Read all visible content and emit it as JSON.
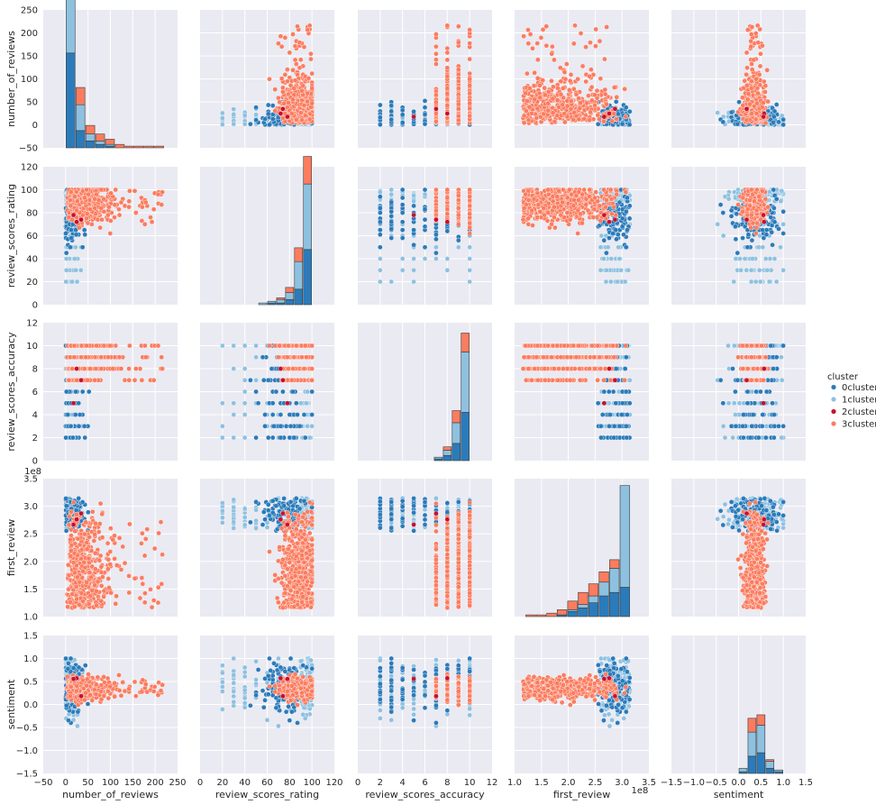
{
  "chart_data": {
    "type": "pairplot",
    "variables": [
      "number_of_reviews",
      "review_scores_rating",
      "review_scores_accuracy",
      "first_review",
      "sentiment"
    ],
    "axes": {
      "number_of_reviews": {
        "range": [
          -50,
          250
        ],
        "ticks": [
          -50,
          0,
          50,
          100,
          150,
          200,
          250
        ],
        "tick_labels": [
          "−50",
          "0",
          "50",
          "100",
          "150",
          "200",
          "250"
        ]
      },
      "review_scores_rating": {
        "range": [
          0,
          120
        ],
        "ticks": [
          0,
          20,
          40,
          60,
          80,
          100,
          120
        ],
        "tick_labels": [
          "0",
          "20",
          "40",
          "60",
          "80",
          "100",
          "120"
        ]
      },
      "review_scores_accuracy": {
        "range": [
          0,
          12
        ],
        "ticks": [
          0,
          2,
          4,
          6,
          8,
          10,
          12
        ],
        "tick_labels": [
          "0",
          "2",
          "4",
          "6",
          "8",
          "10",
          "12"
        ]
      },
      "first_review": {
        "range": [
          100000000,
          350000000
        ],
        "ticks": [
          100000000,
          150000000,
          200000000,
          250000000,
          300000000,
          350000000
        ],
        "tick_labels": [
          "1.0",
          "1.5",
          "2.0",
          "2.5",
          "3.0",
          "3.5"
        ],
        "offset_text": "1e8"
      },
      "sentiment": {
        "range": [
          -1.5,
          1.5
        ],
        "ticks": [
          -1.5,
          -1.0,
          -0.5,
          0.0,
          0.5,
          1.0,
          1.5
        ],
        "tick_labels": [
          "−1.5",
          "−1.0",
          "−0.5",
          "0.0",
          "0.5",
          "1.0",
          "1.5"
        ]
      }
    },
    "hue": "cluster",
    "legend": {
      "title": "cluster",
      "placement": "right",
      "entries": [
        {
          "label": "0cluster",
          "color": "#2b7bba"
        },
        {
          "label": "1cluster",
          "color": "#8ec1e0"
        },
        {
          "label": "2cluster",
          "color": "#c8102e"
        },
        {
          "label": "3cluster",
          "color": "#fb7c5f"
        }
      ]
    },
    "histograms": {
      "number_of_reviews": {
        "bin_edges": [
          0,
          22,
          44,
          66,
          88,
          110,
          132,
          154,
          176,
          198,
          220
        ],
        "series": [
          {
            "name": "0cluster",
            "values": [
              55,
              10,
              4,
              2,
              1,
              0,
              0,
              0,
              0,
              0
            ]
          },
          {
            "name": "1cluster",
            "values": [
              140,
              15,
              4,
              2,
              1,
              0,
              0,
              0,
              0,
              0
            ]
          },
          {
            "name": "3cluster",
            "values": [
              25,
              10,
              5,
              4,
              3,
              2,
              1,
              1,
              1,
              1
            ]
          }
        ]
      },
      "review_scores_rating": {
        "bin_edges": [
          20,
          28,
          36,
          44,
          52,
          60,
          68,
          76,
          84,
          92,
          100
        ],
        "series": [
          {
            "name": "0cluster",
            "values": [
              0,
              0,
              0,
              0,
              0,
              1,
              1,
              3,
              9,
              32
            ]
          },
          {
            "name": "1cluster",
            "values": [
              0,
              0,
              0,
              0,
              1,
              1,
              2,
              4,
              16,
              38
            ]
          },
          {
            "name": "3cluster",
            "values": [
              0,
              0,
              0,
              0,
              0,
              0,
              1,
              3,
              8,
              16
            ]
          }
        ]
      },
      "review_scores_accuracy": {
        "bin_edges": [
          2,
          2.8,
          3.6,
          4.4,
          5.2,
          6,
          6.8,
          7.6,
          8.4,
          9.2,
          10
        ],
        "series": [
          {
            "name": "0cluster",
            "values": [
              0,
              0,
              0,
              0,
              0,
              0,
              1,
              3,
              10,
              28
            ]
          },
          {
            "name": "1cluster",
            "values": [
              0,
              0,
              0,
              0,
              0,
              0,
              1,
              3,
              12,
              35
            ]
          },
          {
            "name": "3cluster",
            "values": [
              0,
              0,
              0,
              0,
              0,
              0,
              0,
              2,
              7,
              11
            ]
          }
        ]
      },
      "first_review": {
        "bin_edges": [
          120000000,
          139500000,
          159000000,
          178500000,
          198000000,
          217500000,
          237000000,
          256500000,
          276000000,
          295500000,
          315000000
        ],
        "series": [
          {
            "name": "0cluster",
            "values": [
              0,
              0,
              0,
              1,
              3,
              5,
              8,
              12,
              14,
              17
            ]
          },
          {
            "name": "1cluster",
            "values": [
              0,
              0,
              0,
              0,
              1,
              2,
              4,
              8,
              14,
              59
            ]
          },
          {
            "name": "3cluster",
            "values": [
              1,
              1,
              2,
              3,
              5,
              7,
              7,
              6,
              5,
              0
            ]
          }
        ]
      },
      "sentiment": {
        "bin_edges": [
          -1.0,
          -0.8,
          -0.6,
          -0.4,
          -0.2,
          0.0,
          0.2,
          0.4,
          0.6,
          0.8,
          1.0
        ],
        "series": [
          {
            "name": "0cluster",
            "values": [
              0,
              0,
              0,
              0,
              0,
              1,
              10,
              12,
              3,
              1
            ]
          },
          {
            "name": "1cluster",
            "values": [
              0,
              0,
              0,
              0,
              0,
              2,
              14,
              16,
              4,
              1
            ]
          },
          {
            "name": "3cluster",
            "values": [
              0,
              0,
              0,
              0,
              0,
              0,
              8,
              6,
              1,
              0
            ]
          }
        ]
      }
    },
    "histogram_ymax": 80
  }
}
